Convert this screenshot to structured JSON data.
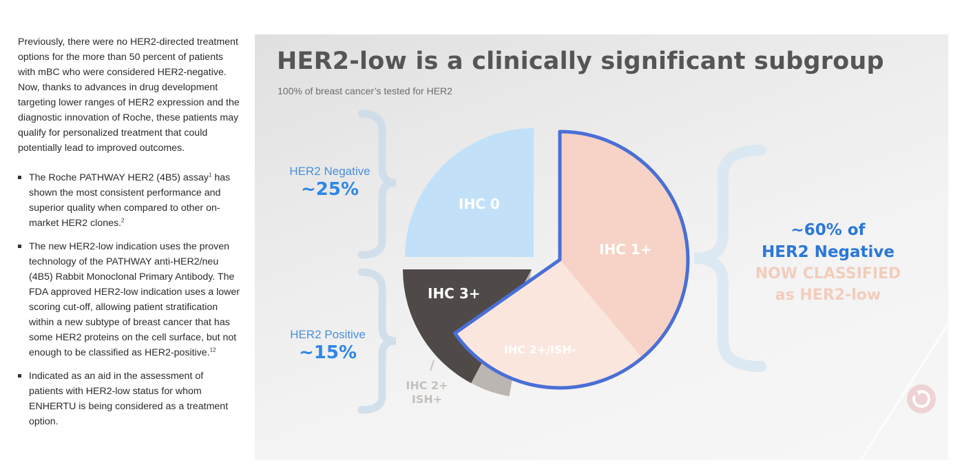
{
  "article": {
    "intro": "Previously, there were no HER2-directed treatment options for the more than 50 percent of patients with mBC who were considered HER2-negative. Now, thanks to advances in drug development targeting lower ranges of HER2 expression and the diagnostic innovation of Roche, these patients may qualify for personalized treatment that could potentially lead to improved outcomes.",
    "bullets": [
      {
        "text": "The Roche PATHWAY HER2 (4B5) assay",
        "sup": "1",
        "text2": " has shown the most consistent performance and superior quality when compared to other on-market HER2 clones.",
        "sup2": "2"
      },
      {
        "text": "The new HER2-low indication uses the proven technology of the PATHWAY anti-HER2/neu (4B5) Rabbit Monoclonal Primary Antibody. The FDA approved HER2-low indication uses a lower scoring cut-off, allowing patient stratification within a new subtype of breast cancer that has some HER2 proteins on the cell surface, but not enough to be classified as HER2-positive.",
        "sup": "12"
      },
      {
        "text": "Indicated as an aid in the assessment of patients with HER2-low status for whom ENHERTU is being considered as a treatment option."
      }
    ]
  },
  "graphic": {
    "title": "HER2-low is a clinically significant subgroup",
    "subtitle": "100% of breast cancer’s tested for HER2",
    "her2_negative": {
      "label": "HER2 Negative",
      "value": "~25%"
    },
    "her2_positive": {
      "label": "HER2 Positive",
      "value": "~15%"
    },
    "callout": {
      "line1": "~60% of",
      "line2": "HER2 Negative",
      "line3": "NOW CLASSIFIED",
      "line4": "as HER2-low"
    },
    "outside_label_line1": "IHC 2+",
    "outside_label_line2": "ISH+",
    "refresh_icon": "refresh-icon"
  },
  "chart_data": {
    "type": "pie",
    "slices": [
      {
        "label": "IHC 0",
        "share": 0.25,
        "color": "#c2e1f9",
        "text_color": "#ffffff"
      },
      {
        "label": "IHC 1+",
        "share": 0.43,
        "color": "#f6d3c6",
        "text_color": "#ffffff"
      },
      {
        "label": "IHC 2+/ISH-",
        "share": 0.17,
        "color": "#fbe6de",
        "text_color": "#ffffff"
      },
      {
        "label": "IHC 2+ ISH+",
        "share": 0.05,
        "color": "#bcb6b2",
        "text_color": "#c4c0bc"
      },
      {
        "label": "IHC 3+",
        "share": 0.1,
        "color": "#4f4a48",
        "text_color": "#ffffff"
      }
    ],
    "highlight_color": "#4a6fd6"
  }
}
